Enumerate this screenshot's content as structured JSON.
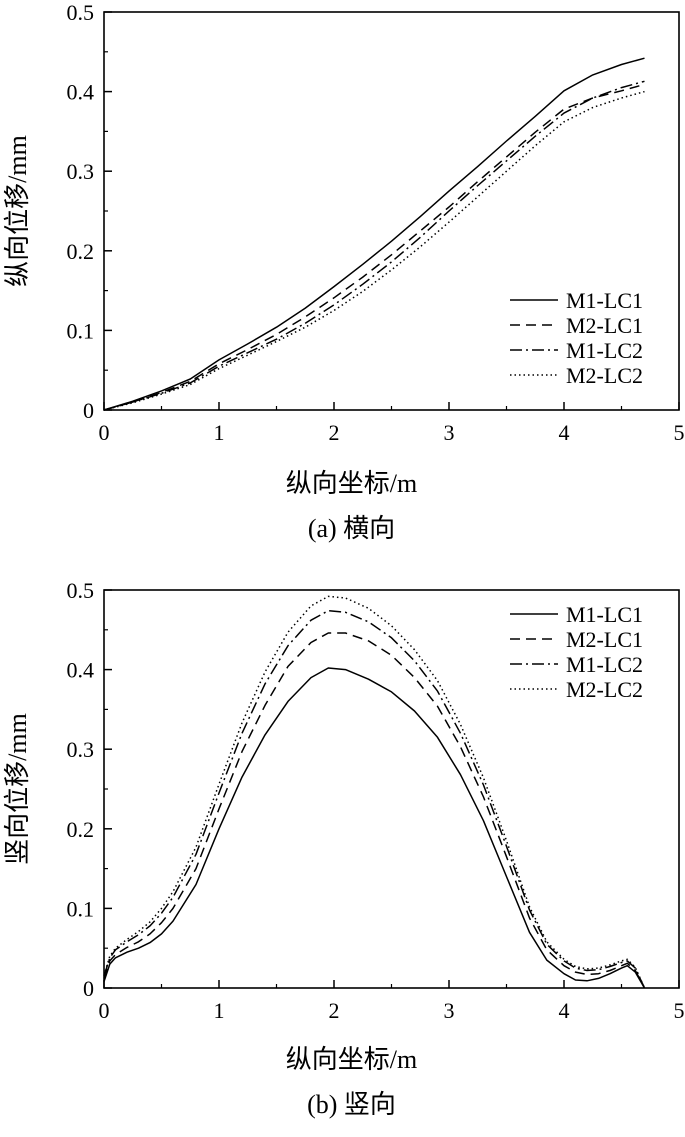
{
  "chart_data": [
    {
      "type": "line",
      "caption": "(a) 横向",
      "xlabel": "纵向坐标/m",
      "ylabel": "纵向位移/mm",
      "xlim": [
        0,
        5
      ],
      "ylim": [
        0,
        0.5
      ],
      "xticks": [
        "0",
        "1",
        "2",
        "3",
        "4",
        "5"
      ],
      "yticks": [
        "0",
        "0.1",
        "0.2",
        "0.3",
        "0.4",
        "0.5"
      ],
      "legend_position": "bottom-right",
      "series": [
        {
          "name": "M1-LC1",
          "style": "solid",
          "x": [
            0,
            0.25,
            0.5,
            0.75,
            1.0,
            1.25,
            1.5,
            1.75,
            2.0,
            2.25,
            2.5,
            2.75,
            3.0,
            3.25,
            3.5,
            3.75,
            4.0,
            4.25,
            4.5,
            4.7
          ],
          "y": [
            0,
            0.011,
            0.024,
            0.039,
            0.063,
            0.083,
            0.104,
            0.128,
            0.155,
            0.183,
            0.212,
            0.243,
            0.275,
            0.306,
            0.338,
            0.369,
            0.401,
            0.421,
            0.434,
            0.442
          ]
        },
        {
          "name": "M2-LC1",
          "style": "dashed",
          "x": [
            0,
            0.25,
            0.5,
            0.75,
            1.0,
            1.25,
            1.5,
            1.75,
            2.0,
            2.25,
            2.5,
            2.75,
            3.0,
            3.25,
            3.5,
            3.75,
            4.0,
            4.25,
            4.5,
            4.7
          ],
          "y": [
            0,
            0.01,
            0.022,
            0.036,
            0.058,
            0.076,
            0.095,
            0.117,
            0.141,
            0.167,
            0.195,
            0.225,
            0.255,
            0.287,
            0.318,
            0.349,
            0.378,
            0.392,
            0.401,
            0.409
          ]
        },
        {
          "name": "M1-LC2",
          "style": "dashdot",
          "x": [
            0,
            0.25,
            0.5,
            0.75,
            1.0,
            1.25,
            1.5,
            1.75,
            2.0,
            2.25,
            2.5,
            2.75,
            3.0,
            3.25,
            3.5,
            3.75,
            4.0,
            4.25,
            4.5,
            4.7
          ],
          "y": [
            0,
            0.01,
            0.021,
            0.034,
            0.055,
            0.072,
            0.089,
            0.109,
            0.132,
            0.158,
            0.186,
            0.217,
            0.25,
            0.282,
            0.313,
            0.344,
            0.373,
            0.392,
            0.405,
            0.413
          ]
        },
        {
          "name": "M2-LC2",
          "style": "dotted",
          "x": [
            0,
            0.25,
            0.5,
            0.75,
            1.0,
            1.25,
            1.5,
            1.75,
            2.0,
            2.25,
            2.5,
            2.75,
            3.0,
            3.25,
            3.5,
            3.75,
            4.0,
            4.25,
            4.5,
            4.7
          ],
          "y": [
            0,
            0.009,
            0.02,
            0.032,
            0.052,
            0.069,
            0.086,
            0.104,
            0.125,
            0.149,
            0.176,
            0.205,
            0.236,
            0.268,
            0.3,
            0.332,
            0.362,
            0.38,
            0.392,
            0.4
          ]
        }
      ]
    },
    {
      "type": "line",
      "caption": "(b) 竖向",
      "xlabel": "纵向坐标/m",
      "ylabel": "竖向位移/mm",
      "xlim": [
        0,
        5
      ],
      "ylim": [
        0,
        0.5
      ],
      "xticks": [
        "0",
        "1",
        "2",
        "3",
        "4",
        "5"
      ],
      "yticks": [
        "0",
        "0.1",
        "0.2",
        "0.3",
        "0.4",
        "0.5"
      ],
      "legend_position": "top-right",
      "series": [
        {
          "name": "M1-LC1",
          "style": "solid",
          "x": [
            0,
            0.05,
            0.1,
            0.2,
            0.3,
            0.4,
            0.5,
            0.6,
            0.8,
            1.0,
            1.2,
            1.4,
            1.6,
            1.8,
            1.95,
            2.1,
            2.3,
            2.5,
            2.7,
            2.9,
            3.1,
            3.3,
            3.5,
            3.7,
            3.85,
            4.0,
            4.1,
            4.2,
            4.3,
            4.4,
            4.5,
            4.55,
            4.62,
            4.7
          ],
          "y": [
            0.008,
            0.03,
            0.038,
            0.045,
            0.05,
            0.057,
            0.068,
            0.084,
            0.13,
            0.2,
            0.265,
            0.318,
            0.36,
            0.39,
            0.402,
            0.4,
            0.388,
            0.372,
            0.348,
            0.315,
            0.268,
            0.21,
            0.14,
            0.07,
            0.035,
            0.018,
            0.01,
            0.009,
            0.012,
            0.018,
            0.025,
            0.028,
            0.02,
            0.0
          ]
        },
        {
          "name": "M2-LC1",
          "style": "dashed",
          "x": [
            0,
            0.05,
            0.1,
            0.2,
            0.3,
            0.4,
            0.5,
            0.6,
            0.8,
            1.0,
            1.2,
            1.4,
            1.6,
            1.8,
            1.95,
            2.1,
            2.3,
            2.5,
            2.7,
            2.9,
            3.1,
            3.3,
            3.5,
            3.7,
            3.85,
            4.0,
            4.1,
            4.2,
            4.3,
            4.4,
            4.5,
            4.55,
            4.62,
            4.7
          ],
          "y": [
            0.012,
            0.034,
            0.042,
            0.051,
            0.058,
            0.068,
            0.082,
            0.1,
            0.15,
            0.225,
            0.297,
            0.355,
            0.404,
            0.434,
            0.446,
            0.446,
            0.436,
            0.418,
            0.39,
            0.354,
            0.303,
            0.24,
            0.165,
            0.088,
            0.048,
            0.028,
            0.02,
            0.017,
            0.018,
            0.022,
            0.028,
            0.031,
            0.022,
            0.0
          ]
        },
        {
          "name": "M1-LC2",
          "style": "dashdot",
          "x": [
            0,
            0.05,
            0.1,
            0.2,
            0.3,
            0.4,
            0.5,
            0.6,
            0.8,
            1.0,
            1.2,
            1.4,
            1.6,
            1.8,
            1.95,
            2.1,
            2.3,
            2.5,
            2.7,
            2.9,
            3.1,
            3.3,
            3.5,
            3.7,
            3.85,
            4.0,
            4.1,
            4.2,
            4.3,
            4.4,
            4.5,
            4.55,
            4.62,
            4.7
          ],
          "y": [
            0.015,
            0.038,
            0.048,
            0.058,
            0.067,
            0.078,
            0.094,
            0.114,
            0.168,
            0.245,
            0.32,
            0.382,
            0.43,
            0.462,
            0.474,
            0.472,
            0.46,
            0.44,
            0.411,
            0.373,
            0.32,
            0.255,
            0.178,
            0.098,
            0.055,
            0.034,
            0.025,
            0.022,
            0.023,
            0.027,
            0.032,
            0.034,
            0.025,
            0.0
          ]
        },
        {
          "name": "M2-LC2",
          "style": "dotted",
          "x": [
            0,
            0.05,
            0.1,
            0.2,
            0.3,
            0.4,
            0.5,
            0.6,
            0.8,
            1.0,
            1.2,
            1.4,
            1.6,
            1.8,
            1.95,
            2.1,
            2.3,
            2.5,
            2.7,
            2.9,
            3.1,
            3.3,
            3.5,
            3.7,
            3.85,
            4.0,
            4.1,
            4.2,
            4.3,
            4.4,
            4.5,
            4.55,
            4.62,
            4.7
          ],
          "y": [
            0.016,
            0.04,
            0.05,
            0.061,
            0.071,
            0.083,
            0.1,
            0.121,
            0.177,
            0.256,
            0.333,
            0.397,
            0.447,
            0.48,
            0.492,
            0.49,
            0.477,
            0.455,
            0.425,
            0.386,
            0.331,
            0.264,
            0.185,
            0.102,
            0.058,
            0.036,
            0.027,
            0.024,
            0.025,
            0.029,
            0.034,
            0.036,
            0.026,
            0.0
          ]
        }
      ]
    }
  ]
}
